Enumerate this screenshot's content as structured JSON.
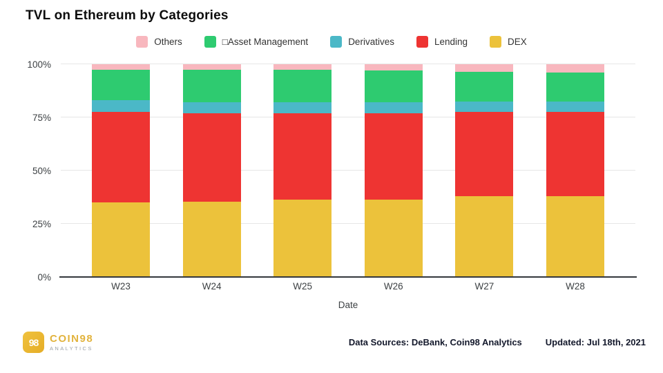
{
  "title": "TVL on Ethereum by Categories",
  "colors": {
    "gold": "#edba33",
    "grid": "#e6e6e6",
    "axis": "#33373c",
    "tick_text": "#3c4043",
    "footer_text": "#13182b"
  },
  "legend": {
    "items": [
      {
        "label": "Others",
        "color": "#f8b7be"
      },
      {
        "label": "□Asset Management",
        "color": "#2ecb70"
      },
      {
        "label": "Derivatives",
        "color": "#4bb8c7"
      },
      {
        "label": "Lending",
        "color": "#ee3432"
      },
      {
        "label": "DEX",
        "color": "#ecc23b"
      }
    ]
  },
  "chart_data": {
    "type": "bar",
    "stacked": true,
    "percent": true,
    "title": "TVL on Ethereum by Categories",
    "xlabel": "Date",
    "ylabel": "",
    "categories": [
      "W23",
      "W24",
      "W25",
      "W26",
      "W27",
      "W28"
    ],
    "series": [
      {
        "name": "DEX",
        "color": "#ecc23b",
        "values": [
          35,
          35.5,
          36.5,
          36.5,
          38,
          38
        ]
      },
      {
        "name": "Lending",
        "color": "#ee3432",
        "values": [
          42.5,
          41.5,
          40.5,
          40.5,
          39.5,
          39.5
        ]
      },
      {
        "name": "Derivatives",
        "color": "#4bb8c7",
        "values": [
          5.5,
          5,
          5,
          5,
          5,
          5
        ]
      },
      {
        "name": "Asset Management",
        "color": "#2ecb70",
        "values": [
          14.5,
          15.5,
          15.5,
          15,
          14,
          13.5
        ]
      },
      {
        "name": "Others",
        "color": "#f8b7be",
        "values": [
          2.5,
          2.5,
          2.5,
          3,
          3.5,
          4
        ]
      }
    ],
    "yticks": [
      "0%",
      "25%",
      "50%",
      "75%",
      "100%"
    ],
    "ylim": [
      0,
      100
    ],
    "grid": true,
    "legend_position": "top"
  },
  "footer": {
    "logo_mark": "98",
    "brand": "COIN98",
    "brand_sub": "ANALYTICS",
    "sources": "Data Sources: DeBank, Coin98 Analytics",
    "updated": "Updated: Jul 18th, 2021"
  }
}
